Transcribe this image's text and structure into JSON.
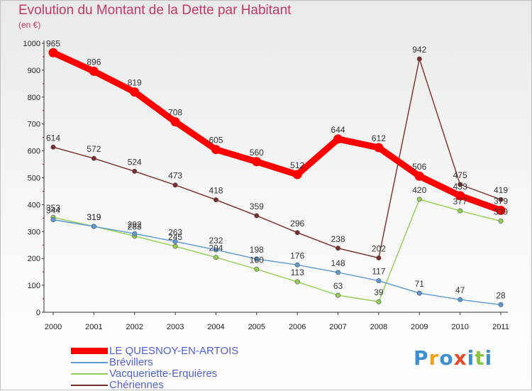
{
  "title": "Evolution du Montant de la Dette par Habitant",
  "unit": "(en €)",
  "logo": "Proxiti",
  "chart_data": {
    "type": "line",
    "title": "Evolution du Montant de la Dette par Habitant",
    "ylabel": "(en €)",
    "xlabel": "",
    "ylim": [
      0,
      1000
    ],
    "yticks": [
      0,
      100,
      200,
      300,
      400,
      500,
      600,
      700,
      800,
      900,
      1000
    ],
    "grid": false,
    "legend_position": "bottom-left",
    "categories": [
      "2000",
      "2001",
      "2002",
      "2003",
      "2004",
      "2005",
      "2006",
      "2007",
      "2008",
      "2009",
      "2010",
      "2011"
    ],
    "series": [
      {
        "name": "LE QUESNOY-EN-ARTOIS",
        "color": "#ff0000",
        "values": [
          965,
          896,
          819,
          708,
          605,
          560,
          512,
          644,
          612,
          506,
          433,
          379
        ]
      },
      {
        "name": "Brévillers",
        "color": "#5b9bd5",
        "values": [
          344,
          319,
          292,
          263,
          232,
          198,
          176,
          148,
          117,
          71,
          47,
          28
        ]
      },
      {
        "name": "Vacqueriette-Erquières",
        "color": "#92d050",
        "values": [
          353,
          319,
          283,
          245,
          204,
          160,
          113,
          63,
          39,
          420,
          377,
          339
        ]
      },
      {
        "name": "Chériennes",
        "color": "#7b2c2c",
        "values": [
          614,
          572,
          524,
          473,
          418,
          359,
          296,
          238,
          202,
          942,
          475,
          419
        ]
      }
    ]
  }
}
